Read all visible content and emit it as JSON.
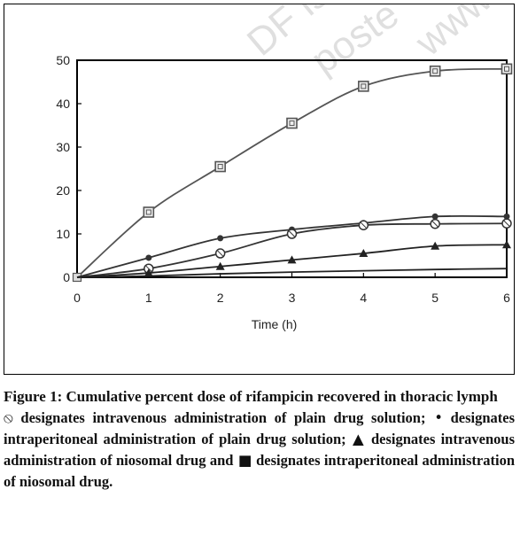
{
  "watermark": [
    "DF is",
    "poste",
    "www"
  ],
  "chart_data": {
    "type": "line",
    "x": [
      0,
      1,
      2,
      3,
      4,
      5,
      6
    ],
    "xlabel": "Time (h)",
    "ylabel": "",
    "xlim": [
      0,
      6
    ],
    "ylim": [
      0,
      50
    ],
    "x_ticks": [
      "0",
      "1",
      "2",
      "3",
      "4",
      "5",
      "6"
    ],
    "y_ticks": [
      "0",
      "10",
      "20",
      "30",
      "40",
      "50"
    ],
    "grid": false,
    "series": [
      {
        "marker": "square-outline",
        "values": [
          0,
          15,
          25.5,
          35.5,
          44,
          47.5,
          48
        ],
        "color": "#555555"
      },
      {
        "marker": "circle-dot",
        "values": [
          0,
          4.5,
          9,
          11,
          12.5,
          14,
          14
        ],
        "color": "#333333"
      },
      {
        "marker": "circle-outline",
        "values": [
          0,
          2,
          5.5,
          10,
          12,
          12.3,
          12.4
        ],
        "color": "#333333"
      },
      {
        "marker": "triangle",
        "values": [
          0,
          1,
          2.5,
          4,
          5.5,
          7.2,
          7.5
        ],
        "color": "#222222"
      },
      {
        "marker": "line",
        "values": [
          0,
          0.3,
          0.8,
          1.2,
          1.5,
          1.8,
          2
        ],
        "color": "#222222"
      }
    ]
  },
  "caption": {
    "title": "Figure 1: Cumulative percent dose of rifampicin recovered in thoracic lymph",
    "legend_parts": [
      {
        "sym": "⦸",
        "text": " designates intravenous administration of plain drug solution;"
      },
      {
        "sym": " •",
        "text": " designates intraperitoneal administration of plain drug solution;"
      },
      {
        "sym": " ▲",
        "text": " designates intravenous administration of niosomal drug and"
      },
      {
        "sym": " ■",
        "text": " designates intraperitoneal administration of niosomal drug."
      }
    ]
  }
}
